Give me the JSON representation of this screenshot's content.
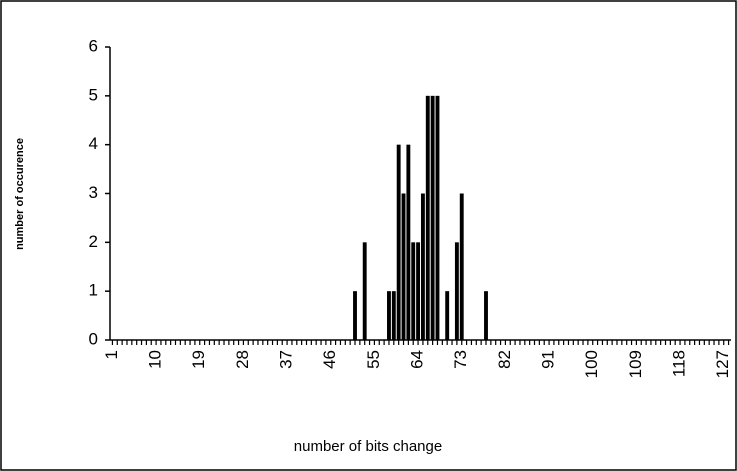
{
  "chart_data": {
    "type": "bar",
    "x_label": "number of bits change",
    "y_label": "number of occurence",
    "categories": [
      "1",
      null,
      null,
      null,
      null,
      null,
      null,
      null,
      null,
      "10",
      null,
      null,
      null,
      null,
      null,
      null,
      null,
      null,
      "19",
      null,
      null,
      null,
      null,
      null,
      null,
      null,
      null,
      "28",
      null,
      null,
      null,
      null,
      null,
      null,
      null,
      null,
      "37",
      null,
      null,
      null,
      null,
      null,
      null,
      null,
      null,
      "46",
      null,
      null,
      null,
      null,
      null,
      null,
      null,
      null,
      "55",
      null,
      null,
      null,
      null,
      null,
      null,
      null,
      null,
      "64",
      null,
      null,
      null,
      null,
      null,
      null,
      null,
      null,
      "73",
      null,
      null,
      null,
      null,
      null,
      null,
      null,
      null,
      "82",
      null,
      null,
      null,
      null,
      null,
      null,
      null,
      null,
      "91",
      null,
      null,
      null,
      null,
      null,
      null,
      null,
      null,
      "100",
      null,
      null,
      null,
      null,
      null,
      null,
      null,
      null,
      "109",
      null,
      null,
      null,
      null,
      null,
      null,
      null,
      null,
      "118",
      null,
      null,
      null,
      null,
      null,
      null,
      null,
      null,
      "127",
      null
    ],
    "values": [
      0,
      0,
      0,
      0,
      0,
      0,
      0,
      0,
      0,
      0,
      0,
      0,
      0,
      0,
      0,
      0,
      0,
      0,
      0,
      0,
      0,
      0,
      0,
      0,
      0,
      0,
      0,
      0,
      0,
      0,
      0,
      0,
      0,
      0,
      0,
      0,
      0,
      0,
      0,
      0,
      0,
      0,
      0,
      0,
      0,
      0,
      0,
      0,
      0,
      0,
      1,
      0,
      2,
      0,
      0,
      0,
      0,
      1,
      1,
      4,
      3,
      4,
      2,
      2,
      3,
      5,
      5,
      5,
      0,
      1,
      0,
      2,
      3,
      0,
      0,
      0,
      0,
      1,
      0,
      0,
      0,
      0,
      0,
      0,
      0,
      0,
      0,
      0,
      0,
      0,
      0,
      0,
      0,
      0,
      0,
      0,
      0,
      0,
      0,
      0,
      0,
      0,
      0,
      0,
      0,
      0,
      0,
      0,
      0,
      0,
      0,
      0,
      0,
      0,
      0,
      0,
      0,
      0,
      0,
      0,
      0,
      0,
      0,
      0,
      0,
      0,
      0,
      0
    ],
    "color": "#000000",
    "ylim": [
      0,
      6
    ],
    "yticks": [
      0,
      1,
      2,
      3,
      4,
      5,
      6
    ],
    "grid": false
  }
}
